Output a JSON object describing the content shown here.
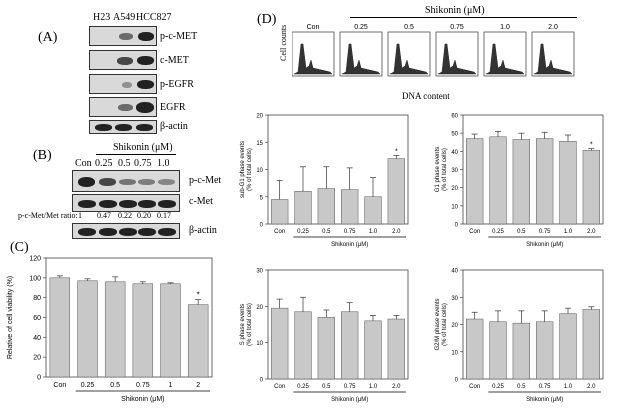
{
  "panel_a": {
    "label": "(A)",
    "cell_lines": [
      "H23",
      "A549",
      "HCC827"
    ],
    "blots": [
      "p-c-MET",
      "c-MET",
      "p-EGFR",
      "EGFR",
      "β-actin"
    ]
  },
  "panel_b": {
    "label": "(B)",
    "header": "Shikonin (μM)",
    "lanes": [
      "Con",
      "0.25",
      "0.5",
      "0.75",
      "1.0"
    ],
    "blots": [
      "p-c-Met",
      "c-Met",
      "β-actin"
    ],
    "ratio_label": "p-c-Met/Met ratio:",
    "ratios": [
      "1",
      "0.47",
      "0.22",
      "0.20",
      "0.17"
    ]
  },
  "panel_c": {
    "label": "(C)",
    "ylabel": "Relative of cell viability (%)",
    "xlabel": "Shikonin (μM)",
    "yticks": [
      "0",
      "20",
      "40",
      "60",
      "80",
      "100",
      "120"
    ],
    "star": "*"
  },
  "panel_d": {
    "label": "(D)",
    "header": "Shikonin (μM)",
    "flow_ylabel": "Cell counts",
    "flow_xlabel": "DNA content",
    "flow_labels": [
      "Con",
      "0.25",
      "0.5",
      "0.75",
      "1.0",
      "2.0"
    ],
    "bar_xlabel": "Shikonin (μM)",
    "star": "*"
  },
  "chart_data": [
    {
      "id": "viability",
      "type": "bar",
      "categories": [
        "Con",
        "0.25",
        "0.5",
        "0.75",
        "1",
        "2"
      ],
      "values": [
        100,
        97,
        96,
        94,
        94,
        73
      ],
      "errors": [
        2,
        2,
        5,
        2,
        1,
        5
      ],
      "ylim": [
        0,
        120
      ],
      "yticks": [
        0,
        20,
        40,
        60,
        80,
        100,
        120
      ],
      "ylabel": "Relative of cell viability (%)",
      "xlabel": "Shikonin (μM)",
      "significant": [
        5
      ]
    },
    {
      "id": "subG1",
      "type": "bar",
      "categories": [
        "Con",
        "0.25",
        "0.5",
        "0.75",
        "1.0",
        "2.0"
      ],
      "values": [
        4.5,
        6,
        6.5,
        6.3,
        5,
        12
      ],
      "errors": [
        3.5,
        4.5,
        4,
        4,
        3.5,
        0.6
      ],
      "ylim": [
        0,
        20
      ],
      "yticks": [
        0,
        5,
        10,
        15,
        20
      ],
      "ylabel": "sub-G1 phase events (% of total cells)",
      "xlabel": "Shikonin (μM)",
      "significant": [
        5
      ]
    },
    {
      "id": "G1",
      "type": "bar",
      "categories": [
        "Con",
        "0.25",
        "0.5",
        "0.75",
        "1.0",
        "2.0"
      ],
      "values": [
        47,
        48,
        46.5,
        47,
        45.5,
        40.5
      ],
      "errors": [
        2.5,
        3,
        3.5,
        3.5,
        3.5,
        1
      ],
      "ylim": [
        0,
        60
      ],
      "yticks": [
        0,
        10,
        20,
        30,
        40,
        50,
        60
      ],
      "ylabel": "G1 phase events (% of total cells)",
      "xlabel": "Shikonin (μM)",
      "significant": [
        5
      ]
    },
    {
      "id": "S",
      "type": "bar",
      "categories": [
        "Con",
        "0.25",
        "0.5",
        "0.75",
        "1.0",
        "2.0"
      ],
      "values": [
        19.5,
        18.5,
        17,
        18.5,
        16,
        16.5
      ],
      "errors": [
        2.5,
        4,
        2,
        2.5,
        1.5,
        1
      ],
      "ylim": [
        0,
        30
      ],
      "yticks": [
        0,
        10,
        20,
        30
      ],
      "ylabel": "S phase events (% of total cells)",
      "xlabel": "Shikonin (μM)",
      "significant": []
    },
    {
      "id": "G2M",
      "type": "bar",
      "categories": [
        "Con",
        "0.25",
        "0.5",
        "0.75",
        "1.0",
        "2.0"
      ],
      "values": [
        22,
        21,
        20.5,
        21,
        24,
        25.5
      ],
      "errors": [
        2.5,
        4,
        4.5,
        4,
        2,
        1
      ],
      "ylim": [
        0,
        40
      ],
      "yticks": [
        0,
        10,
        20,
        30,
        40
      ],
      "ylabel": "G2/M phase events (% of total cells)",
      "xlabel": "Shikonin (μM)",
      "significant": []
    }
  ]
}
